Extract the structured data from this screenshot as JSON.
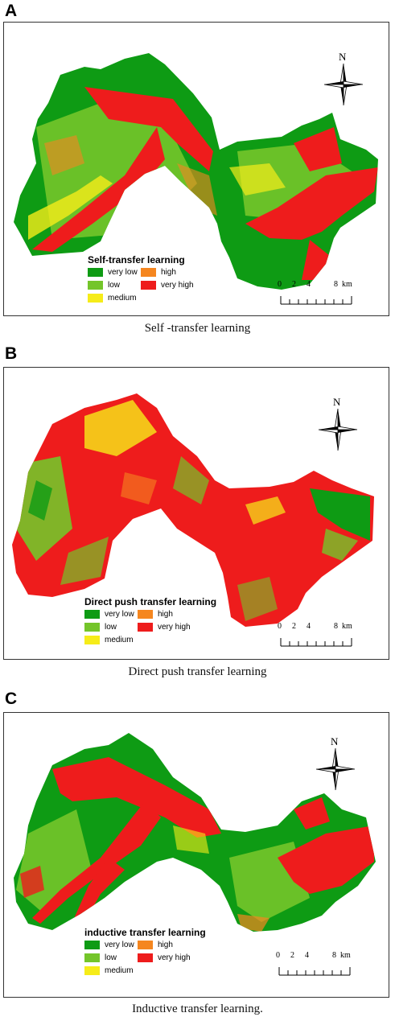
{
  "colors": {
    "very_low": "#0e9b14",
    "low": "#74c52a",
    "medium": "#f6ec19",
    "high": "#f5861f",
    "very_high": "#ee1c1c"
  },
  "panels": [
    {
      "letter": "A",
      "legend_title": "Self-transfer  learning",
      "caption": "Self -transfer learning",
      "legend_items": [
        "very low",
        "low",
        "medium",
        "high",
        "very high"
      ],
      "north_label": "N",
      "scale_ticks": [
        "0",
        "2",
        "4",
        "8"
      ],
      "scale_unit": "km"
    },
    {
      "letter": "B",
      "legend_title": "Direct push transfer learning",
      "caption": "Direct push transfer learning",
      "legend_items": [
        "very low",
        "low",
        "medium",
        "high",
        "very high"
      ],
      "north_label": "N",
      "scale_ticks": [
        "0",
        "2",
        "4",
        "8"
      ],
      "scale_unit": "km"
    },
    {
      "letter": "C",
      "legend_title": "inductive transfer learning",
      "caption": "Inductive transfer learning.",
      "legend_items": [
        "very low",
        "low",
        "medium",
        "high",
        "very high"
      ],
      "north_label": "N",
      "scale_ticks": [
        "0",
        "2",
        "4",
        "8"
      ],
      "scale_unit": "km"
    }
  ]
}
